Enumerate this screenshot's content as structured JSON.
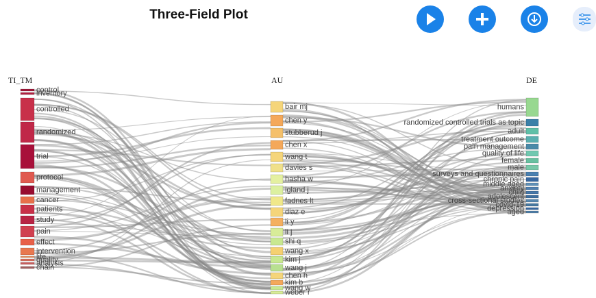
{
  "header": {
    "title": "Three-Field Plot"
  },
  "fields": [
    "TI_TM",
    "AU",
    "DE"
  ],
  "left": [
    "control",
    "inventory",
    "controlled",
    "randomized",
    "trial",
    "protocol",
    "management",
    "cancer",
    "patients",
    "study",
    "pain",
    "effect",
    "intervention",
    "life",
    "quality",
    "analysis",
    "chain"
  ],
  "middle": [
    "bair mj",
    "chen y",
    "stubberud j",
    "chen x",
    "wang t",
    "davies s",
    "hasha w",
    "igland j",
    "fadnes lt",
    "diaz e",
    "li y",
    "li j",
    "shi q",
    "wang x",
    "kim j",
    "wang j",
    "chen h",
    "kim b",
    "wang w",
    "weber r"
  ],
  "right": [
    "humans",
    "randomized controlled trials as topic",
    "adult",
    "treatment outcome",
    "pain management",
    "quality of life",
    "female",
    "male",
    "surveys and questionnaires",
    "chronic pain",
    "middle aged",
    "anxiety",
    "child",
    "adolescent",
    "cross-sectional studies",
    "covid-19",
    "depression",
    "aged"
  ]
}
